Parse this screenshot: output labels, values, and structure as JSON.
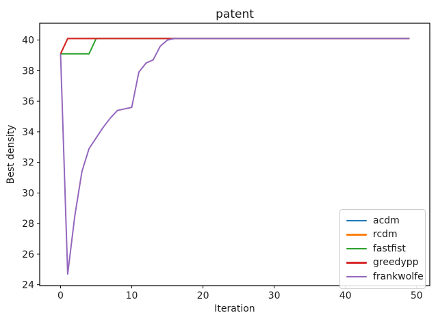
{
  "figure": {
    "title": "patent",
    "xlabel": "Iteration",
    "ylabel": "Best density"
  },
  "chart_data": {
    "type": "line",
    "title": "patent",
    "xlabel": "Iteration",
    "ylabel": "Best density",
    "xlim": [
      -2.93,
      51.85
    ],
    "ylim": [
      23.94,
      41.1
    ],
    "xticks": [
      0,
      10,
      20,
      30,
      40,
      50
    ],
    "yticks": [
      24,
      26,
      28,
      30,
      32,
      34,
      36,
      38,
      40
    ],
    "grid": false,
    "legend_position": "lower right",
    "x": [
      0,
      1,
      2,
      3,
      4,
      5,
      6,
      7,
      8,
      9,
      10,
      11,
      12,
      13,
      14,
      15,
      16,
      17,
      18,
      19,
      20,
      21,
      22,
      23,
      24,
      25,
      26,
      27,
      28,
      29,
      30,
      31,
      32,
      33,
      34,
      35,
      36,
      37,
      38,
      39,
      40,
      41,
      42,
      43,
      44,
      45,
      46,
      47,
      48,
      49
    ],
    "series": [
      {
        "name": "acdm",
        "color": "#1f77b4",
        "values": [
          39.1,
          40.1,
          40.1,
          40.1,
          40.1,
          40.1,
          40.1,
          40.1,
          40.1,
          40.1,
          40.1,
          40.1,
          40.1,
          40.1,
          40.1,
          40.1,
          40.1,
          40.1,
          40.1,
          40.1,
          40.1,
          40.1,
          40.1,
          40.1,
          40.1,
          40.1,
          40.1,
          40.1,
          40.1,
          40.1,
          40.1,
          40.1,
          40.1,
          40.1,
          40.1,
          40.1,
          40.1,
          40.1,
          40.1,
          40.1,
          40.1,
          40.1,
          40.1,
          40.1,
          40.1,
          40.1,
          40.1,
          40.1,
          40.1,
          40.1
        ]
      },
      {
        "name": "rcdm",
        "color": "#ff7f0e",
        "values": [
          39.1,
          40.1,
          40.1,
          40.1,
          40.1,
          40.1,
          40.1,
          40.1,
          40.1,
          40.1,
          40.1,
          40.1,
          40.1,
          40.1,
          40.1,
          40.1,
          40.1,
          40.1,
          40.1,
          40.1,
          40.1,
          40.1,
          40.1,
          40.1,
          40.1,
          40.1,
          40.1,
          40.1,
          40.1,
          40.1,
          40.1,
          40.1,
          40.1,
          40.1,
          40.1,
          40.1,
          40.1,
          40.1,
          40.1,
          40.1,
          40.1,
          40.1,
          40.1,
          40.1,
          40.1,
          40.1,
          40.1,
          40.1,
          40.1,
          40.1
        ]
      },
      {
        "name": "fastfist",
        "color": "#2ca02c",
        "values": [
          39.1,
          39.1,
          39.1,
          39.1,
          39.1,
          40.1,
          40.1,
          40.1,
          40.1,
          40.1,
          40.1,
          40.1,
          40.1,
          40.1,
          40.1,
          40.1,
          40.1,
          40.1,
          40.1,
          40.1,
          40.1,
          40.1,
          40.1,
          40.1,
          40.1,
          40.1,
          40.1,
          40.1,
          40.1,
          40.1,
          40.1,
          40.1,
          40.1,
          40.1,
          40.1,
          40.1,
          40.1,
          40.1,
          40.1,
          40.1,
          40.1,
          40.1,
          40.1,
          40.1,
          40.1,
          40.1,
          40.1,
          40.1,
          40.1,
          40.1
        ]
      },
      {
        "name": "greedypp",
        "color": "#d62728",
        "values": [
          39.1,
          40.1,
          40.1,
          40.1,
          40.1,
          40.1,
          40.1,
          40.1,
          40.1,
          40.1,
          40.1,
          40.1,
          40.1,
          40.1,
          40.1,
          40.1,
          40.1,
          40.1,
          40.1,
          40.1,
          40.1,
          40.1,
          40.1,
          40.1,
          40.1,
          40.1,
          40.1,
          40.1,
          40.1,
          40.1,
          40.1,
          40.1,
          40.1,
          40.1,
          40.1,
          40.1,
          40.1,
          40.1,
          40.1,
          40.1,
          40.1,
          40.1,
          40.1,
          40.1,
          40.1,
          40.1,
          40.1,
          40.1,
          40.1,
          40.1
        ]
      },
      {
        "name": "frankwolfe",
        "color": "#9467bd",
        "values": [
          39.1,
          24.7,
          28.5,
          31.4,
          32.9,
          33.6,
          34.3,
          34.9,
          35.4,
          35.5,
          35.6,
          37.9,
          38.5,
          38.7,
          39.6,
          40.0,
          40.1,
          40.1,
          40.1,
          40.1,
          40.1,
          40.1,
          40.1,
          40.1,
          40.1,
          40.1,
          40.1,
          40.1,
          40.1,
          40.1,
          40.1,
          40.1,
          40.1,
          40.1,
          40.1,
          40.1,
          40.1,
          40.1,
          40.1,
          40.1,
          40.1,
          40.1,
          40.1,
          40.1,
          40.1,
          40.1,
          40.1,
          40.1,
          40.1,
          40.1
        ]
      }
    ]
  }
}
